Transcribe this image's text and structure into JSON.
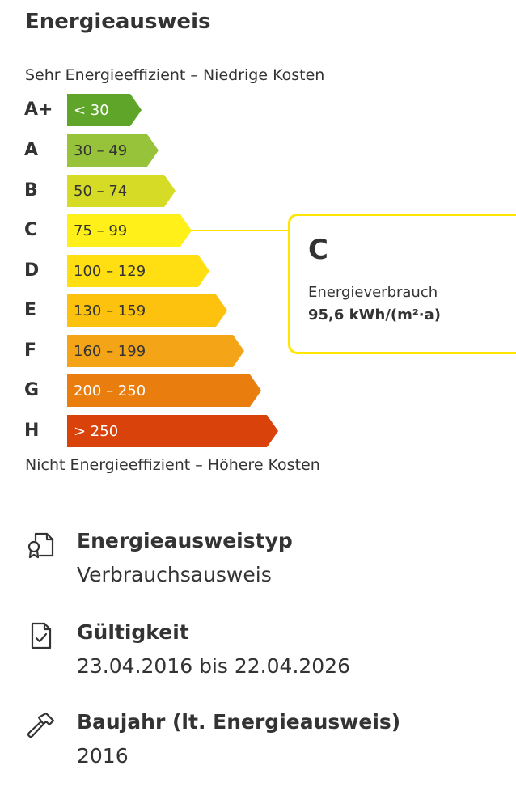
{
  "section": {
    "title": "Energieausweis"
  },
  "scale": {
    "top_note": "Sehr Energieeffizient – Niedrige Kosten",
    "bottom_note": "Nicht Energieeffizient – Höhere Kosten",
    "rows": [
      {
        "letter": "A+",
        "range": "< 30",
        "color": "#5ea52a",
        "text_color": "#ffffff"
      },
      {
        "letter": "A",
        "range": "30 – 49",
        "color": "#97c33a",
        "text_color": "#333333"
      },
      {
        "letter": "B",
        "range": "50 – 74",
        "color": "#d6db26",
        "text_color": "#333333"
      },
      {
        "letter": "C",
        "range": "75 – 99",
        "color": "#fff01a",
        "text_color": "#333333"
      },
      {
        "letter": "D",
        "range": "100 – 129",
        "color": "#ffdf12",
        "text_color": "#333333"
      },
      {
        "letter": "E",
        "range": "130 – 159",
        "color": "#fcc20d",
        "text_color": "#333333"
      },
      {
        "letter": "F",
        "range": "160 – 199",
        "color": "#f3a417",
        "text_color": "#333333"
      },
      {
        "letter": "G",
        "range": "200 – 250",
        "color": "#e97d0d",
        "text_color": "#ffffff"
      },
      {
        "letter": "H",
        "range": "> 250",
        "color": "#d9420b",
        "text_color": "#ffffff"
      }
    ]
  },
  "callout": {
    "class": "C",
    "label": "Energieverbrauch",
    "value": "95,6 kWh/(m²·a)",
    "border_color": "#ffe600"
  },
  "details": [
    {
      "icon": "certificate-document-icon",
      "label": "Energieausweistyp",
      "value": "Verbrauchsausweis"
    },
    {
      "icon": "checked-document-icon",
      "label": "Gültigkeit",
      "value": "23.04.2016 bis 22.04.2026"
    },
    {
      "icon": "hammer-icon",
      "label": "Baujahr (lt. Energieausweis)",
      "value": "2016"
    }
  ]
}
